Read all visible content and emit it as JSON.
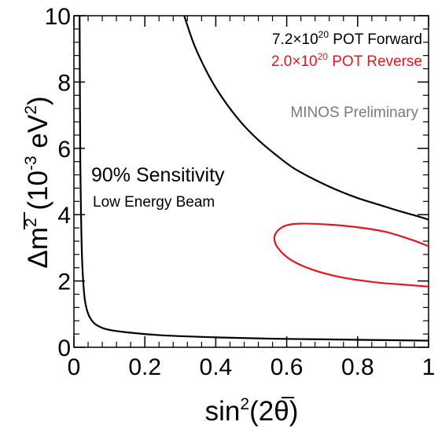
{
  "chart_data": {
    "type": "line",
    "xlabel_parts": {
      "a": "sin",
      "sup": "2",
      "b": "(2",
      "theta": "θ",
      "c": ")"
    },
    "ylabel_parts": {
      "a": "Δ",
      "m": "m",
      "sup": "2",
      "b": " (10",
      "exp": "-3",
      "c": " eV",
      "sup2": "2",
      "d": ")"
    },
    "xlim": [
      0,
      1
    ],
    "ylim": [
      0,
      10
    ],
    "x_ticks": [
      {
        "value": 0,
        "label": "0"
      },
      {
        "value": 0.2,
        "label": "0.2"
      },
      {
        "value": 0.4,
        "label": "0.4"
      },
      {
        "value": 0.6,
        "label": "0.6"
      },
      {
        "value": 0.8,
        "label": "0.8"
      },
      {
        "value": 1,
        "label": "1"
      }
    ],
    "y_ticks": [
      {
        "value": 0,
        "label": "0"
      },
      {
        "value": 2,
        "label": "2"
      },
      {
        "value": 4,
        "label": "4"
      },
      {
        "value": 6,
        "label": "6"
      },
      {
        "value": 8,
        "label": "8"
      },
      {
        "value": 10,
        "label": "10"
      }
    ],
    "grid": false,
    "legend": {
      "placement": "top-right",
      "entries": [
        {
          "base": "7.2×10",
          "exp": "20",
          "rest": " POT Forward",
          "color": "#000000"
        },
        {
          "base": "2.0×10",
          "exp": "20",
          "rest": " POT Reverse",
          "color": "#e8141c"
        }
      ]
    },
    "annotations": {
      "preliminary": "MINOS Preliminary",
      "sensitivity": "90% Sensitivity",
      "beam": "Low Energy Beam"
    },
    "series": [
      {
        "color": "#000000",
        "shape": "open",
        "points": [
          [
            0.311,
            10.0
          ],
          [
            0.34,
            9.1
          ],
          [
            0.38,
            8.2
          ],
          [
            0.42,
            7.5
          ],
          [
            0.47,
            6.8
          ],
          [
            0.52,
            6.25
          ],
          [
            0.57,
            5.8
          ],
          [
            0.62,
            5.4
          ],
          [
            0.68,
            5.05
          ],
          [
            0.74,
            4.75
          ],
          [
            0.8,
            4.5
          ],
          [
            0.86,
            4.3
          ],
          [
            0.92,
            4.1
          ],
          [
            0.97,
            3.95
          ],
          [
            1.0,
            3.85
          ]
        ]
      },
      {
        "color": "#000000",
        "shape": "open",
        "points": [
          [
            0.016,
            10.0
          ],
          [
            0.017,
            7.5
          ],
          [
            0.018,
            5.5
          ],
          [
            0.02,
            4.0
          ],
          [
            0.022,
            3.0
          ],
          [
            0.025,
            2.2
          ],
          [
            0.03,
            1.5
          ],
          [
            0.036,
            1.15
          ],
          [
            0.045,
            0.9
          ],
          [
            0.06,
            0.7
          ],
          [
            0.09,
            0.55
          ],
          [
            0.15,
            0.45
          ],
          [
            0.25,
            0.36
          ],
          [
            0.4,
            0.3
          ],
          [
            0.55,
            0.26
          ],
          [
            0.7,
            0.24
          ],
          [
            0.85,
            0.22
          ],
          [
            1.0,
            0.2
          ]
        ]
      },
      {
        "color": "#e8141c",
        "shape": "closed",
        "points": [
          [
            1.0,
            3.05
          ],
          [
            0.95,
            3.25
          ],
          [
            0.88,
            3.48
          ],
          [
            0.8,
            3.62
          ],
          [
            0.72,
            3.7
          ],
          [
            0.64,
            3.73
          ],
          [
            0.6,
            3.68
          ],
          [
            0.575,
            3.52
          ],
          [
            0.565,
            3.3
          ],
          [
            0.575,
            3.0
          ],
          [
            0.61,
            2.65
          ],
          [
            0.67,
            2.35
          ],
          [
            0.75,
            2.12
          ],
          [
            0.85,
            1.96
          ],
          [
            0.93,
            1.89
          ],
          [
            1.0,
            1.83
          ]
        ]
      }
    ]
  }
}
